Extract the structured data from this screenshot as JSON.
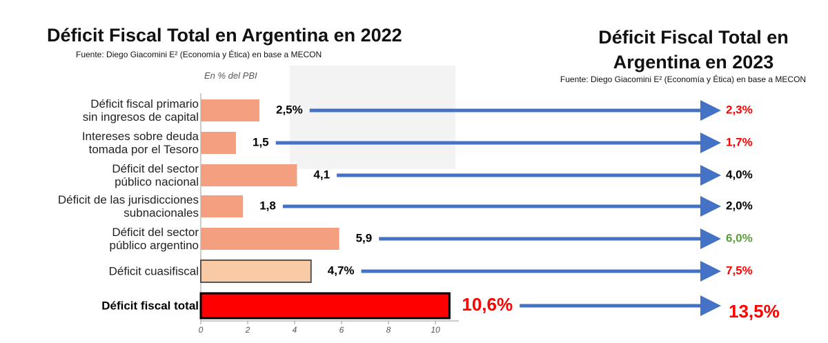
{
  "chart_data": {
    "type": "bar",
    "orientation": "horizontal",
    "title": "Déficit Fiscal Total en Argentina en 2022",
    "source": "Fuente: Diego Giacomini E² (Economía y Ética) en base a MECON",
    "subtitle": "En % del PBI",
    "title_2023": "Déficit Fiscal Total en\nArgentina en 2023",
    "source_2023": "Fuente: Diego Giacomini E² (Economía y Ética) en base a MECON",
    "categories": [
      "Déficit fiscal primario\nsin ingresos de capital",
      "Intereses sobre deuda\ntomada por el Tesoro",
      "Déficit  del sector\npúblico nacional",
      "Déficit de las jurisdicciones\nsubnacionales",
      "Déficit del sector\npúblico argentino",
      "Déficit cuasifiscal",
      "Déficit fiscal total"
    ],
    "series": [
      {
        "values": [
          2.5,
          1.5,
          4.1,
          1.8,
          5.9,
          4.7,
          10.6
        ],
        "value_labels": [
          "2,5%",
          "1,5",
          "4,1",
          "1,8",
          "5,9",
          "4,7%",
          "10,6%"
        ],
        "colors": [
          "#f4a080",
          "#f4a080",
          "#f4a080",
          "#f4a080",
          "#f4a080",
          "#f8caa6",
          "#ff0000"
        ],
        "label_colors": [
          "#000000",
          "#000000",
          "#000000",
          "#000000",
          "#000000",
          "#000000",
          "#ff0000"
        ]
      },
      {
        "values": [
          2.3,
          1.7,
          4.0,
          2.0,
          6.0,
          7.5,
          13.5
        ],
        "value_labels": [
          "2,3%",
          "1,7%",
          "4,0%",
          "2,0%",
          "6,0%",
          "7,5%",
          "13,5%"
        ],
        "label_colors": [
          "#ff0000",
          "#ff0000",
          "#000000",
          "#000000",
          "#5a9e3a",
          "#ff0000",
          "#ff0000"
        ]
      }
    ],
    "xlim": [
      0,
      11
    ],
    "xticks": [
      0,
      2,
      4,
      6,
      8,
      10
    ]
  }
}
